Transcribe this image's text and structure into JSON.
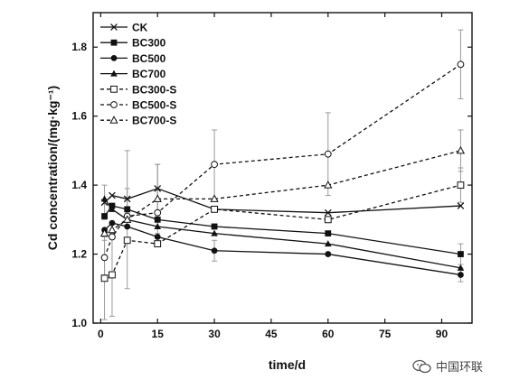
{
  "chart_data": {
    "type": "line",
    "xlabel": "time/d",
    "ylabel": "Cd concentration/(mg·kg⁻¹)",
    "xlim": [
      -2,
      98
    ],
    "ylim": [
      1.0,
      1.9
    ],
    "xticks": [
      0,
      15,
      30,
      45,
      60,
      75,
      90
    ],
    "yticks": [
      1.0,
      1.2,
      1.4,
      1.6,
      1.8
    ],
    "ytick_labels": [
      "1.0",
      "1.2",
      "1.4",
      "1.6",
      "1.8"
    ],
    "grid": false,
    "legend_position": "top-left",
    "x": [
      1,
      3,
      7,
      15,
      30,
      60,
      95
    ],
    "series": [
      {
        "name": "CK",
        "marker": "x",
        "style": "solid",
        "values": [
          1.35,
          1.37,
          1.36,
          1.39,
          1.33,
          1.32,
          1.34
        ],
        "errors": [
          0.05,
          0.0,
          0.03,
          0.07,
          0.0,
          0.0,
          0.0
        ]
      },
      {
        "name": "BC300",
        "marker": "square-filled",
        "style": "solid",
        "values": [
          1.31,
          1.34,
          1.33,
          1.3,
          1.28,
          1.26,
          1.2
        ],
        "errors": [
          0.0,
          0.0,
          0.0,
          0.0,
          0.0,
          0.0,
          0.03
        ]
      },
      {
        "name": "BC500",
        "marker": "circle-filled",
        "style": "solid",
        "values": [
          1.27,
          1.29,
          1.28,
          1.25,
          1.21,
          1.2,
          1.14
        ],
        "errors": [
          0.0,
          0.0,
          0.0,
          0.0,
          0.03,
          0.0,
          0.02
        ]
      },
      {
        "name": "BC700",
        "marker": "triangle-filled",
        "style": "solid",
        "values": [
          1.36,
          1.33,
          1.3,
          1.28,
          1.26,
          1.23,
          1.16
        ],
        "errors": [
          0.0,
          0.0,
          0.0,
          0.0,
          0.0,
          0.0,
          0.0
        ]
      },
      {
        "name": "BC300-S",
        "marker": "square-open",
        "style": "dashed",
        "values": [
          1.13,
          1.14,
          1.24,
          1.23,
          1.33,
          1.3,
          1.4
        ],
        "errors": [
          0.12,
          0.12,
          0.0,
          0.0,
          0.0,
          0.0,
          0.05
        ]
      },
      {
        "name": "BC500-S",
        "marker": "circle-open",
        "style": "dashed",
        "values": [
          1.19,
          1.25,
          1.31,
          1.32,
          1.46,
          1.49,
          1.75
        ],
        "errors": [
          0.05,
          0.0,
          0.0,
          0.0,
          0.1,
          0.12,
          0.1
        ]
      },
      {
        "name": "BC700-S",
        "marker": "triangle-open",
        "style": "dashed",
        "values": [
          1.26,
          1.27,
          1.3,
          1.36,
          1.36,
          1.4,
          1.5
        ],
        "errors": [
          0.0,
          0.0,
          0.2,
          0.1,
          0.0,
          0.0,
          0.06
        ]
      }
    ]
  },
  "watermark": {
    "text": "中国环联",
    "icon": "wechat-icon"
  },
  "colors": {
    "line": "#111111",
    "errorbar": "#9a9a9a"
  }
}
